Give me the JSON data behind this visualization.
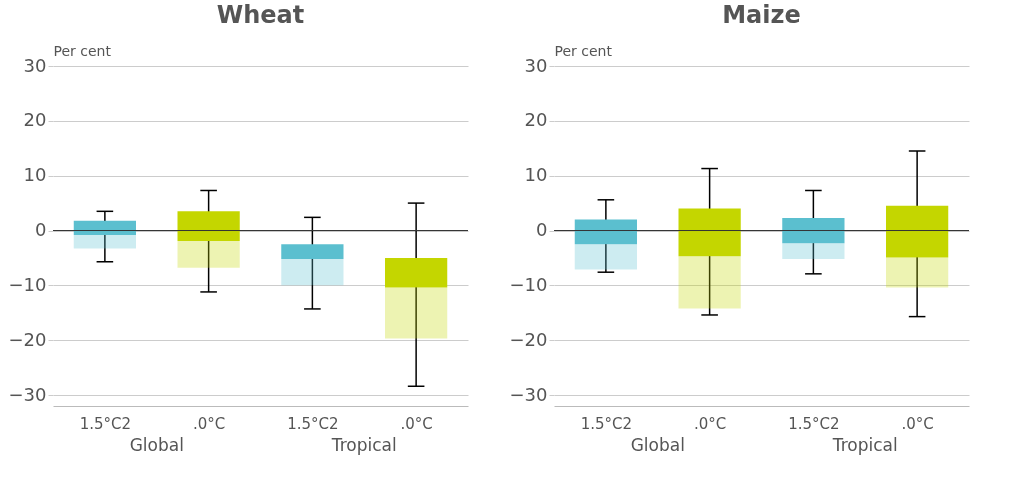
{
  "chart_data": [
    {
      "type": "box",
      "title": "Wheat",
      "ylabel": "Per cent",
      "categories": [
        "1.5°C2",
        ".0°C",
        "1.5°C2",
        ".0°C"
      ],
      "colors": [
        "#5bbfcf",
        "#c4d600",
        "#5bbfcf",
        "#c4d600"
      ],
      "boxes": [
        {
          "low": -5.7,
          "q1": -3.3,
          "median": -0.8,
          "q3": 1.8,
          "high": 3.5
        },
        {
          "low": -11.2,
          "q1": -6.8,
          "median": -1.9,
          "q3": 3.5,
          "high": 7.3
        },
        {
          "low": -14.3,
          "q1": -10,
          "median": -5.2,
          "q3": -2.5,
          "high": 2.4
        },
        {
          "low": -28.4,
          "q1": -19.7,
          "median": -10.4,
          "q3": -5,
          "high": 5
        }
      ],
      "ylim": [
        -32,
        30
      ],
      "yticks": [
        -30,
        -20,
        -10,
        0,
        10,
        20,
        30
      ],
      "grid": "y",
      "annotations": [
        "Global",
        "Tropical"
      ],
      "ref_lines": [
        {
          "axis": "y",
          "value": 0,
          "color": "#333333"
        }
      ]
    },
    {
      "type": "box",
      "title": "Maize",
      "ylabel": "Per cent",
      "categories": [
        "1.5°C2",
        ".0°C",
        "1.5°C2",
        ".0°C"
      ],
      "colors": [
        "#5bbfcf",
        "#c4d600",
        "#5bbfcf",
        "#c4d600"
      ],
      "boxes": [
        {
          "low": -7.6,
          "q1": -7.1,
          "median": -2.5,
          "q3": 2,
          "high": 5.6
        },
        {
          "low": -15.4,
          "q1": -14.2,
          "median": -4.7,
          "q3": 4,
          "high": 11.3
        },
        {
          "low": -7.9,
          "q1": -5.2,
          "median": -2.3,
          "q3": 2.3,
          "high": 7.3
        },
        {
          "low": -15.7,
          "q1": -10.4,
          "median": -4.9,
          "q3": 4.5,
          "high": 14.5
        }
      ],
      "ylim": [
        -32,
        30
      ],
      "yticks": [
        -30,
        -20,
        -10,
        0,
        10,
        20,
        30
      ],
      "grid": "y",
      "annotations": [
        "Global",
        "Tropical"
      ],
      "ref_lines": [
        {
          "axis": "y",
          "value": 0,
          "color": "#333333"
        }
      ]
    }
  ]
}
